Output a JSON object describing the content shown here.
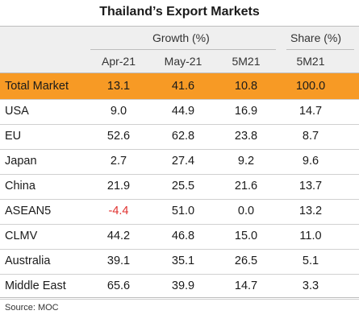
{
  "title": "Thailand’s Export Markets",
  "header": {
    "growth_label": "Growth (%)",
    "share_label": "Share (%)",
    "columns": [
      "Apr-21",
      "May-21",
      "5M21",
      "5M21"
    ]
  },
  "rows": [
    {
      "name": "Total Market",
      "values": [
        "13.1",
        "41.6",
        "10.8",
        "100.0"
      ],
      "highlight": true
    },
    {
      "name": "USA",
      "values": [
        "9.0",
        "44.9",
        "16.9",
        "14.7"
      ]
    },
    {
      "name": "EU",
      "values": [
        "52.6",
        "62.8",
        "23.8",
        "8.7"
      ]
    },
    {
      "name": "Japan",
      "values": [
        "2.7",
        "27.4",
        "9.2",
        "9.6"
      ]
    },
    {
      "name": "China",
      "values": [
        "21.9",
        "25.5",
        "21.6",
        "13.7"
      ]
    },
    {
      "name": "ASEAN5",
      "values": [
        "-4.4",
        "51.0",
        "0.0",
        "13.2"
      ]
    },
    {
      "name": "CLMV",
      "values": [
        "44.2",
        "46.8",
        "15.0",
        "11.0"
      ]
    },
    {
      "name": "Australia",
      "values": [
        "39.1",
        "35.1",
        "26.5",
        "5.1"
      ]
    },
    {
      "name": "Middle East",
      "values": [
        "65.6",
        "39.9",
        "14.7",
        "3.3"
      ]
    }
  ],
  "colors": {
    "highlight": "#f79a25",
    "negative": "#e0312f",
    "header_bg": "#efefef"
  },
  "source": "Source: MOC"
}
